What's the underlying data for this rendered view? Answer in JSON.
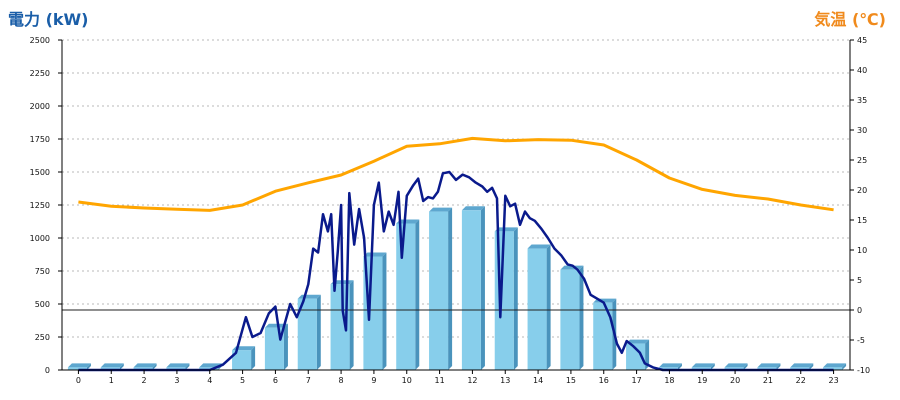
{
  "chart_data": {
    "type": "bar",
    "xlabel": "",
    "categories": [
      "0",
      "1",
      "2",
      "3",
      "4",
      "5",
      "6",
      "7",
      "8",
      "9",
      "10",
      "11",
      "12",
      "13",
      "14",
      "15",
      "16",
      "17",
      "18",
      "19",
      "20",
      "21",
      "22",
      "23"
    ],
    "y_left_label": "電力 (kW)",
    "y_right_label": "気温 (℃)",
    "y_left_ticks": [
      "0",
      "250",
      "500",
      "750",
      "1000",
      "1250",
      "1500",
      "1750",
      "2000",
      "2250",
      "2500"
    ],
    "y_right_ticks": [
      "-10",
      "-5",
      "0",
      "5",
      "10",
      "15",
      "20",
      "25",
      "30",
      "35",
      "40",
      "45"
    ],
    "ylim_left": [
      0,
      2500
    ],
    "ylim_right": [
      -10,
      45
    ],
    "grid": true,
    "series": [
      {
        "kind": "bar",
        "axis": "left",
        "values": [
          20,
          20,
          20,
          20,
          20,
          150,
          320,
          540,
          650,
          860,
          1110,
          1200,
          1210,
          1050,
          920,
          760,
          510,
          200,
          20,
          20,
          20,
          20,
          20,
          20
        ]
      },
      {
        "kind": "line",
        "axis": "left",
        "color": "#0a1a8c",
        "points": [
          [
            0,
            0
          ],
          [
            1,
            0
          ],
          [
            2,
            0
          ],
          [
            3,
            0
          ],
          [
            4,
            0
          ],
          [
            4.4,
            40
          ],
          [
            4.8,
            130
          ],
          [
            5.1,
            400
          ],
          [
            5.3,
            250
          ],
          [
            5.55,
            280
          ],
          [
            5.8,
            430
          ],
          [
            6.0,
            480
          ],
          [
            6.15,
            230
          ],
          [
            6.45,
            500
          ],
          [
            6.65,
            400
          ],
          [
            6.85,
            520
          ],
          [
            7.0,
            650
          ],
          [
            7.15,
            920
          ],
          [
            7.3,
            890
          ],
          [
            7.45,
            1180
          ],
          [
            7.6,
            1050
          ],
          [
            7.7,
            1180
          ],
          [
            7.8,
            600
          ],
          [
            7.9,
            900
          ],
          [
            8.0,
            1250
          ],
          [
            8.05,
            450
          ],
          [
            8.15,
            300
          ],
          [
            8.25,
            1340
          ],
          [
            8.4,
            950
          ],
          [
            8.55,
            1220
          ],
          [
            8.7,
            1000
          ],
          [
            8.85,
            380
          ],
          [
            9.0,
            1250
          ],
          [
            9.15,
            1420
          ],
          [
            9.3,
            1050
          ],
          [
            9.45,
            1200
          ],
          [
            9.6,
            1100
          ],
          [
            9.75,
            1350
          ],
          [
            9.85,
            850
          ],
          [
            10.0,
            1320
          ],
          [
            10.2,
            1400
          ],
          [
            10.35,
            1450
          ],
          [
            10.5,
            1280
          ],
          [
            10.65,
            1310
          ],
          [
            10.8,
            1300
          ],
          [
            10.95,
            1350
          ],
          [
            11.1,
            1490
          ],
          [
            11.3,
            1500
          ],
          [
            11.5,
            1440
          ],
          [
            11.7,
            1480
          ],
          [
            11.9,
            1460
          ],
          [
            12.1,
            1420
          ],
          [
            12.3,
            1390
          ],
          [
            12.45,
            1350
          ],
          [
            12.6,
            1380
          ],
          [
            12.75,
            1300
          ],
          [
            12.85,
            400
          ],
          [
            13.0,
            1320
          ],
          [
            13.15,
            1240
          ],
          [
            13.3,
            1260
          ],
          [
            13.45,
            1100
          ],
          [
            13.6,
            1200
          ],
          [
            13.75,
            1150
          ],
          [
            13.9,
            1130
          ],
          [
            14.1,
            1070
          ],
          [
            14.3,
            1000
          ],
          [
            14.5,
            920
          ],
          [
            14.7,
            870
          ],
          [
            14.9,
            800
          ],
          [
            15.05,
            790
          ],
          [
            15.2,
            760
          ],
          [
            15.4,
            690
          ],
          [
            15.6,
            570
          ],
          [
            15.8,
            540
          ],
          [
            16.0,
            510
          ],
          [
            16.2,
            400
          ],
          [
            16.4,
            200
          ],
          [
            16.55,
            130
          ],
          [
            16.7,
            220
          ],
          [
            16.9,
            180
          ],
          [
            17.1,
            130
          ],
          [
            17.25,
            50
          ],
          [
            17.5,
            20
          ],
          [
            17.8,
            0
          ],
          [
            18,
            0
          ],
          [
            19,
            0
          ],
          [
            20,
            0
          ],
          [
            21,
            0
          ],
          [
            22,
            0
          ],
          [
            23,
            0
          ]
        ]
      },
      {
        "kind": "line",
        "axis": "right",
        "color": "#ffa500",
        "values": [
          18,
          17.3,
          17,
          16.8,
          16.6,
          17.5,
          19.8,
          21.2,
          22.5,
          24.8,
          27.3,
          27.7,
          28.6,
          28.2,
          28.4,
          28.3,
          27.5,
          25,
          22,
          20.1,
          19.1,
          18.5,
          17.5,
          16.7
        ]
      }
    ],
    "hline_right": 0
  }
}
